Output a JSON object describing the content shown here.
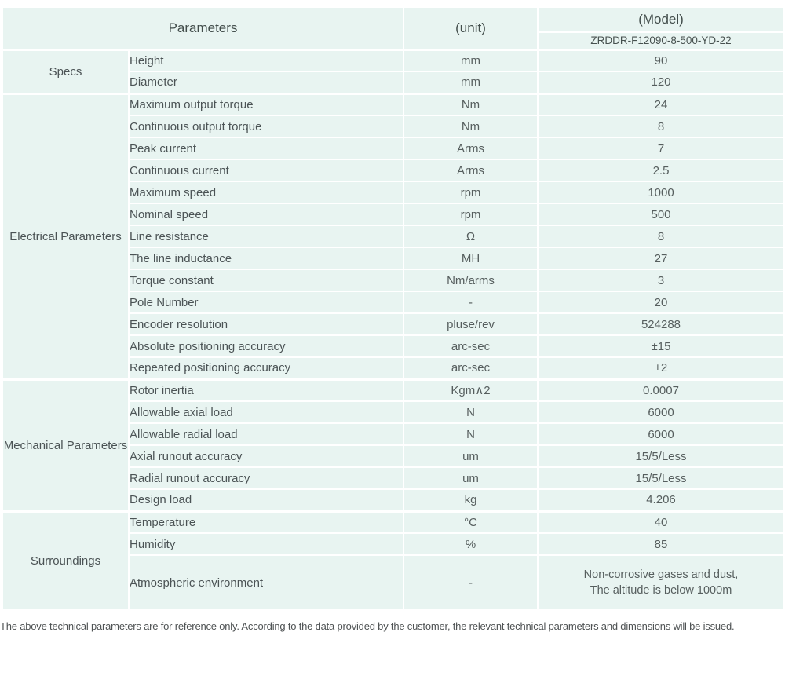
{
  "table": {
    "header": {
      "parameters_label": "Parameters",
      "unit_label": "(unit)",
      "model_label": "(Model)",
      "model_value": "ZRDDR-F12090-8-500-YD-22"
    },
    "sections": [
      {
        "name": "Specs",
        "rows": [
          {
            "param": "Height",
            "unit": "mm",
            "value": "90"
          },
          {
            "param": "Diameter",
            "unit": "mm",
            "value": "120"
          }
        ]
      },
      {
        "name": "Electrical Parameters",
        "rows": [
          {
            "param": "Maximum output torque",
            "unit": "Nm",
            "value": "24"
          },
          {
            "param": "Continuous output torque",
            "unit": "Nm",
            "value": "8"
          },
          {
            "param": "Peak current",
            "unit": "Arms",
            "value": "7"
          },
          {
            "param": "Continuous current",
            "unit": "Arms",
            "value": "2.5"
          },
          {
            "param": "Maximum speed",
            "unit": "rpm",
            "value": "1000"
          },
          {
            "param": "Nominal speed",
            "unit": "rpm",
            "value": "500"
          },
          {
            "param": "Line resistance",
            "unit": "Ω",
            "value": "8"
          },
          {
            "param": "The line inductance",
            "unit": "MH",
            "value": "27"
          },
          {
            "param": "Torque constant",
            "unit": "Nm/arms",
            "value": "3"
          },
          {
            "param": "Pole Number",
            "unit": "-",
            "value": "20"
          },
          {
            "param": "Encoder resolution",
            "unit": "pluse/rev",
            "value": "524288"
          },
          {
            "param": "Absolute positioning accuracy",
            "unit": "arc-sec",
            "value": "±15"
          },
          {
            "param": "Repeated positioning accuracy",
            "unit": "arc-sec",
            "value": "±2"
          }
        ]
      },
      {
        "name": "Mechanical Parameters",
        "rows": [
          {
            "param": "Rotor inertia",
            "unit": "Kgm∧2",
            "value": "0.0007"
          },
          {
            "param": "Allowable axial load",
            "unit": "N",
            "value": "6000"
          },
          {
            "param": "Allowable radial load",
            "unit": "N",
            "value": "6000"
          },
          {
            "param": "Axial runout accuracy",
            "unit": "um",
            "value": "15/5/Less"
          },
          {
            "param": "Radial runout accuracy",
            "unit": "um",
            "value": "15/5/Less"
          },
          {
            "param": "Design load",
            "unit": "kg",
            "value": "4.206"
          }
        ]
      },
      {
        "name": "Surroundings",
        "rows": [
          {
            "param": "Temperature",
            "unit": "°C",
            "value": "40"
          },
          {
            "param": "Humidity",
            "unit": "%",
            "value": "85"
          },
          {
            "param": "Atmospheric environment",
            "unit": "-",
            "value": [
              "Non-corrosive gases and dust,",
              "The altitude is below 1000m"
            ],
            "tall": true
          }
        ]
      }
    ]
  },
  "footnote": "The above technical parameters are for reference only. According to the data provided by the customer, the relevant technical parameters and dimensions will be issued.",
  "colors": {
    "header_bg": "#bee0d8",
    "row_bg": "#e8f4f1",
    "divider": "#ffffff",
    "text": "#4b5355"
  }
}
